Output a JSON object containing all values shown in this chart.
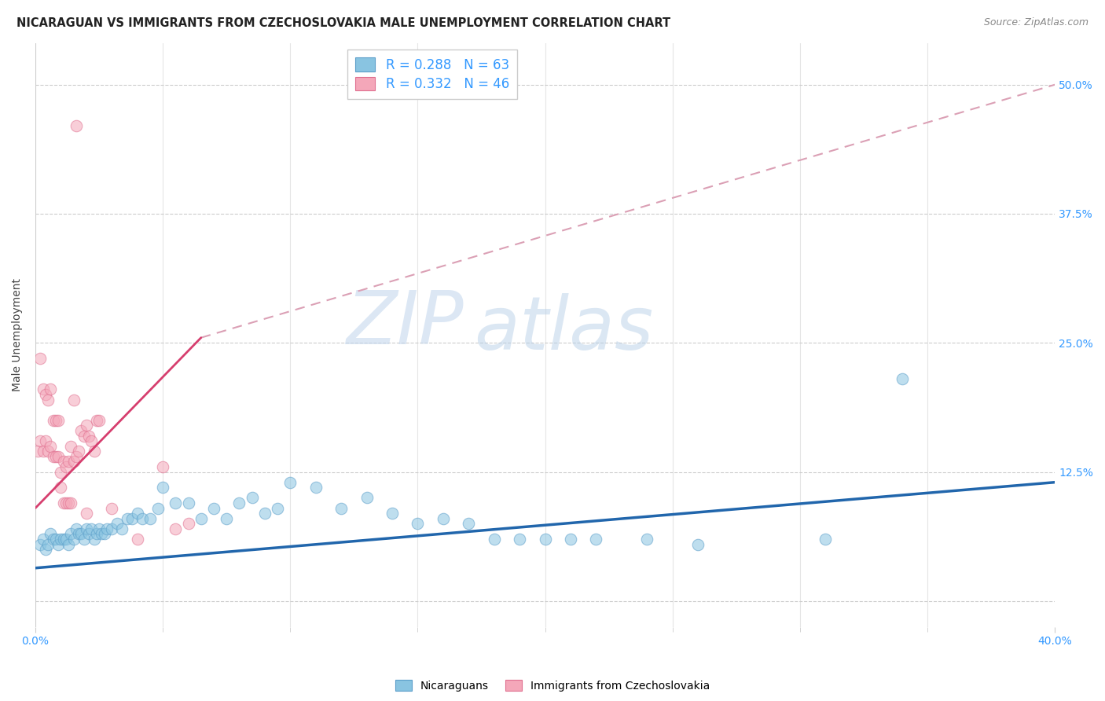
{
  "title": "NICARAGUAN VS IMMIGRANTS FROM CZECHOSLOVAKIA MALE UNEMPLOYMENT CORRELATION CHART",
  "source": "Source: ZipAtlas.com",
  "ylabel": "Male Unemployment",
  "xlim": [
    0.0,
    0.4
  ],
  "ylim": [
    -0.025,
    0.54
  ],
  "yticks": [
    0.0,
    0.125,
    0.25,
    0.375,
    0.5
  ],
  "ytick_labels": [
    "",
    "12.5%",
    "25.0%",
    "37.5%",
    "50.0%"
  ],
  "blue_scatter_x": [
    0.002,
    0.003,
    0.004,
    0.005,
    0.006,
    0.007,
    0.008,
    0.009,
    0.01,
    0.011,
    0.012,
    0.013,
    0.014,
    0.015,
    0.016,
    0.017,
    0.018,
    0.019,
    0.02,
    0.021,
    0.022,
    0.023,
    0.024,
    0.025,
    0.026,
    0.027,
    0.028,
    0.03,
    0.032,
    0.034,
    0.036,
    0.038,
    0.04,
    0.042,
    0.045,
    0.048,
    0.05,
    0.055,
    0.06,
    0.065,
    0.07,
    0.075,
    0.08,
    0.085,
    0.09,
    0.095,
    0.1,
    0.11,
    0.12,
    0.13,
    0.14,
    0.15,
    0.16,
    0.17,
    0.18,
    0.19,
    0.2,
    0.21,
    0.22,
    0.24,
    0.26,
    0.31,
    0.34
  ],
  "blue_scatter_y": [
    0.055,
    0.06,
    0.05,
    0.055,
    0.065,
    0.06,
    0.06,
    0.055,
    0.06,
    0.06,
    0.06,
    0.055,
    0.065,
    0.06,
    0.07,
    0.065,
    0.065,
    0.06,
    0.07,
    0.065,
    0.07,
    0.06,
    0.065,
    0.07,
    0.065,
    0.065,
    0.07,
    0.07,
    0.075,
    0.07,
    0.08,
    0.08,
    0.085,
    0.08,
    0.08,
    0.09,
    0.11,
    0.095,
    0.095,
    0.08,
    0.09,
    0.08,
    0.095,
    0.1,
    0.085,
    0.09,
    0.115,
    0.11,
    0.09,
    0.1,
    0.085,
    0.075,
    0.08,
    0.075,
    0.06,
    0.06,
    0.06,
    0.06,
    0.06,
    0.06,
    0.055,
    0.06,
    0.215
  ],
  "pink_scatter_x": [
    0.001,
    0.002,
    0.003,
    0.004,
    0.005,
    0.006,
    0.007,
    0.008,
    0.009,
    0.01,
    0.011,
    0.012,
    0.013,
    0.014,
    0.015,
    0.016,
    0.017,
    0.018,
    0.019,
    0.02,
    0.021,
    0.022,
    0.023,
    0.024,
    0.025,
    0.002,
    0.003,
    0.004,
    0.005,
    0.006,
    0.007,
    0.008,
    0.009,
    0.01,
    0.011,
    0.012,
    0.013,
    0.014,
    0.02,
    0.03,
    0.04,
    0.05,
    0.055,
    0.06,
    0.015,
    0.016
  ],
  "pink_scatter_y": [
    0.145,
    0.155,
    0.145,
    0.155,
    0.145,
    0.15,
    0.14,
    0.14,
    0.14,
    0.125,
    0.135,
    0.13,
    0.135,
    0.15,
    0.135,
    0.14,
    0.145,
    0.165,
    0.16,
    0.17,
    0.16,
    0.155,
    0.145,
    0.175,
    0.175,
    0.235,
    0.205,
    0.2,
    0.195,
    0.205,
    0.175,
    0.175,
    0.175,
    0.11,
    0.095,
    0.095,
    0.095,
    0.095,
    0.085,
    0.09,
    0.06,
    0.13,
    0.07,
    0.075,
    0.195,
    0.46
  ],
  "blue_line_x": [
    0.0,
    0.4
  ],
  "blue_line_y": [
    0.032,
    0.115
  ],
  "pink_solid_line_x": [
    0.0,
    0.065
  ],
  "pink_solid_line_y": [
    0.09,
    0.255
  ],
  "pink_dashed_line_x": [
    0.065,
    0.4
  ],
  "pink_dashed_line_y": [
    0.255,
    0.5
  ],
  "blue_color": "#89c4e1",
  "blue_edge_color": "#5b9ec9",
  "pink_color": "#f4a7b9",
  "pink_edge_color": "#e07090",
  "blue_line_color": "#2166ac",
  "pink_line_color": "#d63e6e",
  "pink_dashed_color": "#dba0b5",
  "legend_r_blue": "R = 0.288",
  "legend_n_blue": "N = 63",
  "legend_r_pink": "R = 0.332",
  "legend_n_pink": "N = 46",
  "legend_label_blue": "Nicaraguans",
  "legend_label_pink": "Immigrants from Czechoslovakia",
  "watermark_zip": "ZIP",
  "watermark_atlas": "atlas",
  "title_fontsize": 10.5,
  "source_fontsize": 9,
  "axis_label_fontsize": 10,
  "tick_fontsize": 10,
  "legend_fontsize": 12
}
